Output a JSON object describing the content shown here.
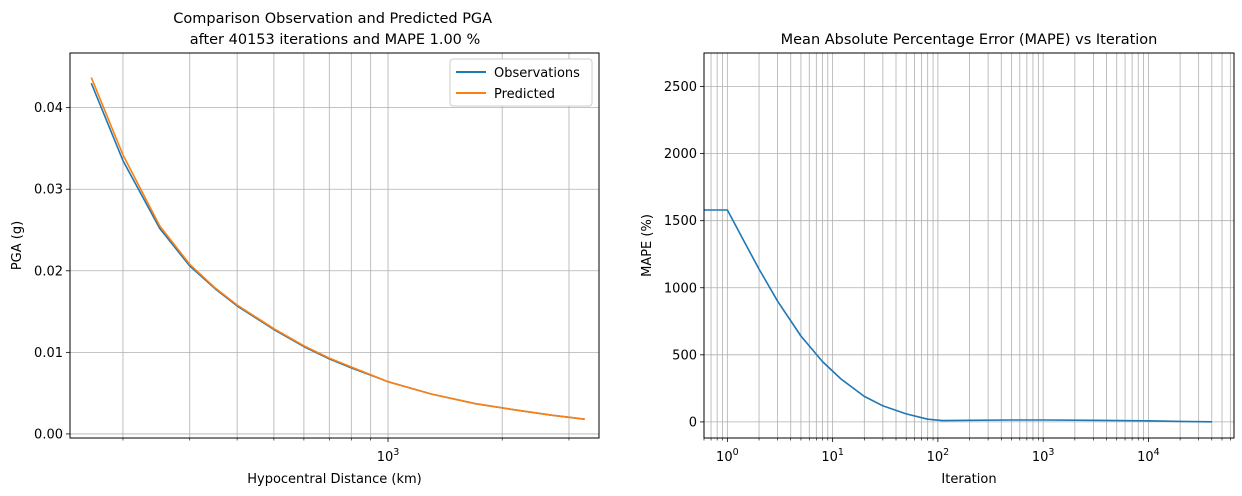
{
  "chart_data": [
    {
      "type": "line",
      "title": "Comparison Observation and Predicted PGA\nafter 40153 iterations and MAPE 1.00 %",
      "xlabel": "Hypocentral Distance (km)",
      "ylabel": "PGA (g)",
      "xscale": "log",
      "xlim": [
        145,
        3600
      ],
      "ylim": [
        -0.0005,
        0.0467
      ],
      "xticks": [
        {
          "value": 1000,
          "base": "10",
          "exp": "3"
        }
      ],
      "yticks": [
        0.0,
        0.01,
        0.02,
        0.03,
        0.04
      ],
      "ytick_labels": [
        "0.00",
        "0.01",
        "0.02",
        "0.03",
        "0.04"
      ],
      "grid": true,
      "legend": "top-right",
      "series": [
        {
          "name": "Observations",
          "color": "#1f77b4",
          "x": [
            165,
            200,
            250,
            300,
            350,
            400,
            500,
            600,
            700,
            800,
            1000,
            1300,
            1700,
            2200,
            2700,
            3300
          ],
          "y": [
            0.043,
            0.0335,
            0.0252,
            0.0206,
            0.0178,
            0.0157,
            0.0128,
            0.0107,
            0.0092,
            0.0081,
            0.0064,
            0.0049,
            0.0037,
            0.0029,
            0.0023,
            0.0018
          ]
        },
        {
          "name": "Predicted",
          "color": "#ff7f0e",
          "x": [
            165,
            200,
            250,
            300,
            350,
            400,
            500,
            600,
            700,
            800,
            1000,
            1300,
            1700,
            2200,
            2700,
            3300
          ],
          "y": [
            0.0437,
            0.0342,
            0.0255,
            0.0208,
            0.0179,
            0.0158,
            0.0129,
            0.0108,
            0.0093,
            0.0082,
            0.0064,
            0.0049,
            0.0037,
            0.0029,
            0.0023,
            0.0018
          ]
        }
      ]
    },
    {
      "type": "line",
      "title": "Mean Absolute Percentage Error (MAPE) vs Iteration",
      "xlabel": "Iteration",
      "ylabel": "MAPE (%)",
      "xscale": "log",
      "xlim": [
        0.6,
        65000
      ],
      "ylim": [
        -120,
        2750
      ],
      "xticks": [
        {
          "value": 1,
          "base": "10",
          "exp": "0"
        },
        {
          "value": 10,
          "base": "10",
          "exp": "1"
        },
        {
          "value": 100,
          "base": "10",
          "exp": "2"
        },
        {
          "value": 1000,
          "base": "10",
          "exp": "3"
        },
        {
          "value": 10000,
          "base": "10",
          "exp": "4"
        }
      ],
      "yticks": [
        0,
        500,
        1000,
        1500,
        2000,
        2500
      ],
      "ytick_labels": [
        "0",
        "500",
        "1000",
        "1500",
        "2000",
        "2500"
      ],
      "grid": true,
      "series": [
        {
          "color": "#1f77b4",
          "x": [
            0.6,
            1,
            1.5,
            2,
            3,
            5,
            8,
            12,
            20,
            30,
            50,
            80,
            110,
            200,
            500,
            1000,
            3000,
            10000,
            20000,
            40153
          ],
          "y": [
            1580,
            1580,
            1320,
            1140,
            900,
            640,
            450,
            320,
            190,
            120,
            60,
            20,
            10,
            12,
            14,
            14,
            12,
            8,
            4,
            1
          ]
        }
      ]
    }
  ]
}
